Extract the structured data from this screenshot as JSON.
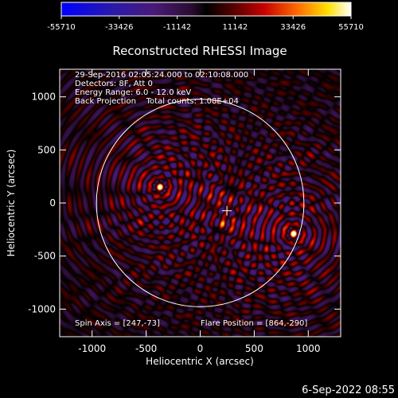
{
  "chart_data": {
    "type": "heatmap",
    "title": "Reconstructed RHESSI Image",
    "xlabel": "Heliocentric X (arcsec)",
    "ylabel": "Heliocentric Y (arcsec)",
    "xlim": [
      -1300,
      1300
    ],
    "ylim": [
      -1260,
      1260
    ],
    "x_ticks": [
      -1000,
      -500,
      0,
      500,
      1000
    ],
    "y_ticks": [
      -1000,
      -500,
      0,
      500,
      1000
    ],
    "colorbar": {
      "ticks": [
        "-55710",
        "-33426",
        "-11142",
        "11142",
        "33426",
        "55710"
      ],
      "range": [
        -55710,
        55710
      ],
      "colormap": "blue-purple-red-yellow-white"
    },
    "annotations": [
      "29-Sep-2016 02:05:24.000 to 02:10:08.000",
      "Detectors: 8F, Att 0",
      "Energy Range: 6.0 - 12.0 keV",
      "Back Projection    Total counts: 1.08E+04"
    ],
    "footer_left": "Spin Axis = [247,-73]",
    "footer_right": "Flare Position = [864,-290]",
    "spin_axis": [
      247,
      -73
    ],
    "flare_position": [
      864,
      -290
    ],
    "solar_disk_radius": 960,
    "sources": [
      {
        "x": -370,
        "y": 150,
        "peak": 55710
      },
      {
        "x": 864,
        "y": -290,
        "peak": 55710
      },
      {
        "x": 210,
        "y": -200,
        "peak": 30000
      },
      {
        "x": 275,
        "y": 30,
        "peak": 22000
      }
    ]
  },
  "timestamp": "6-Sep-2022 08:55"
}
